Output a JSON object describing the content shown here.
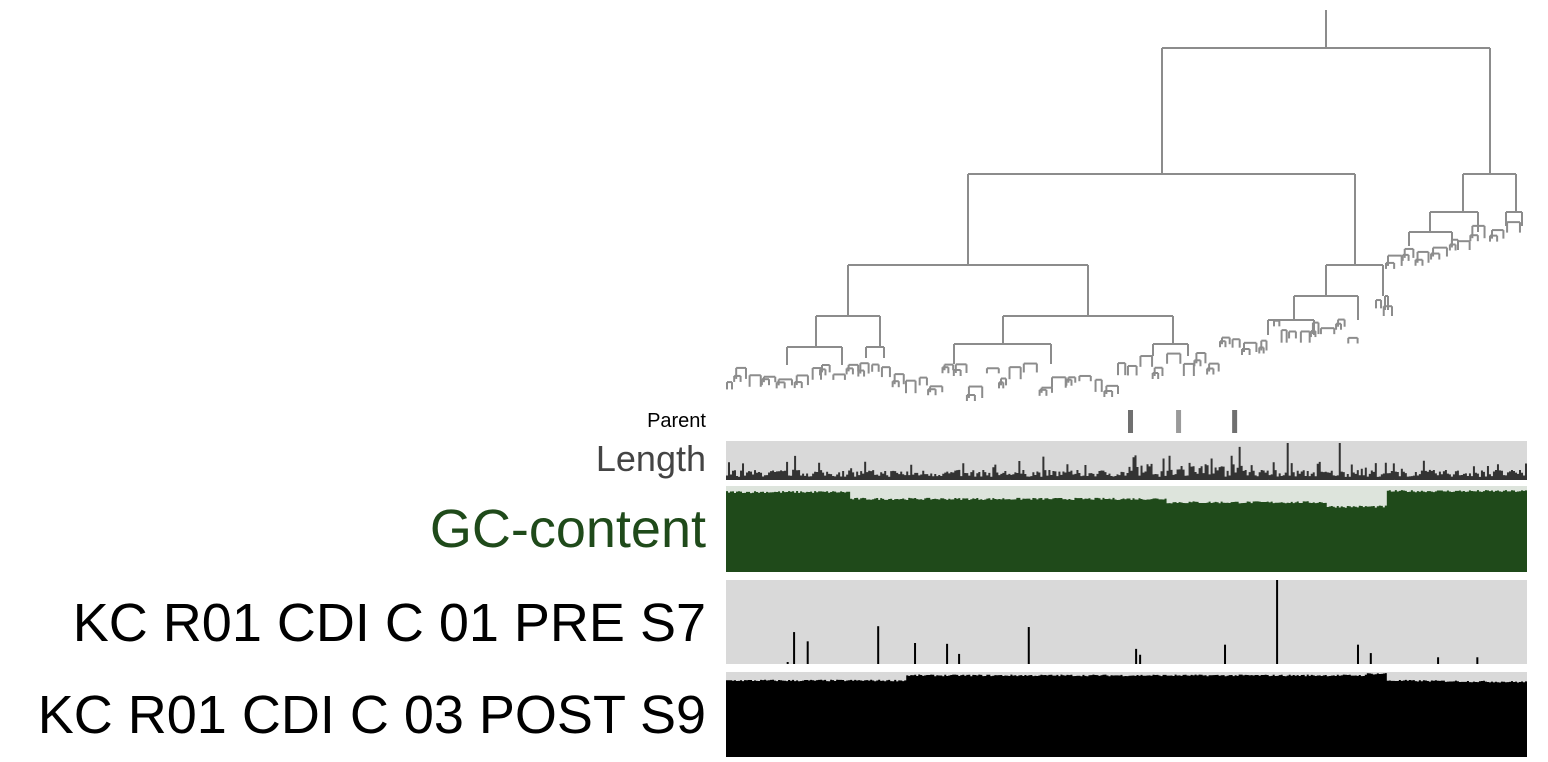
{
  "layers": {
    "parent": {
      "label": "Parent"
    },
    "length": {
      "label": "Length"
    },
    "gc": {
      "label": "GC-content"
    },
    "sample1": {
      "label": "KC R01 CDI C 01 PRE S7"
    },
    "sample2": {
      "label": "KC R01 CDI C 03 POST S9"
    }
  },
  "colors": {
    "tree": "#8c8c8c",
    "layer_background": "#d9d9d9",
    "parent_marker": "#707070",
    "length_bar": "#333333",
    "gc_fill": "#1f4a1a",
    "gc_background": "#dde4dc",
    "sample1_bar": "#000000",
    "sample2_fill": "#000000",
    "label_length": "#444444",
    "label_gc": "#1f4a1a"
  },
  "chart_data": {
    "type": "bar",
    "description_kind": "anvi'o-style contig dendrogram with per-item layers",
    "item_count": 400,
    "parent_markers": [
      0.505,
      0.565,
      0.635
    ],
    "length_peaks": [
      {
        "x": 0.7,
        "v": 0.95
      },
      {
        "x": 0.765,
        "v": 0.95
      },
      {
        "x": 0.64,
        "v": 0.85
      },
      {
        "x": 0.545,
        "v": 0.55
      },
      {
        "x": 0.085,
        "v": 0.62
      },
      {
        "x": 0.395,
        "v": 0.6
      },
      {
        "x": 0.605,
        "v": 0.55
      }
    ],
    "gc_segments": [
      {
        "from": 0.0,
        "to": 0.155,
        "v": 0.93
      },
      {
        "from": 0.155,
        "to": 0.55,
        "v": 0.85
      },
      {
        "from": 0.55,
        "to": 0.75,
        "v": 0.81
      },
      {
        "from": 0.75,
        "to": 0.825,
        "v": 0.76
      },
      {
        "from": 0.825,
        "to": 1.0,
        "v": 0.94
      }
    ],
    "sample1_spikes": [
      {
        "x": 0.077,
        "v": 0.02
      },
      {
        "x": 0.085,
        "v": 0.38
      },
      {
        "x": 0.102,
        "v": 0.27
      },
      {
        "x": 0.19,
        "v": 0.45
      },
      {
        "x": 0.236,
        "v": 0.25
      },
      {
        "x": 0.276,
        "v": 0.24
      },
      {
        "x": 0.291,
        "v": 0.12
      },
      {
        "x": 0.378,
        "v": 0.44
      },
      {
        "x": 0.512,
        "v": 0.18
      },
      {
        "x": 0.517,
        "v": 0.11
      },
      {
        "x": 0.623,
        "v": 0.23
      },
      {
        "x": 0.688,
        "v": 1.0
      },
      {
        "x": 0.789,
        "v": 0.23
      },
      {
        "x": 0.805,
        "v": 0.13
      },
      {
        "x": 0.889,
        "v": 0.08
      },
      {
        "x": 0.938,
        "v": 0.08
      }
    ],
    "sample2_segments": [
      {
        "from": 0.0,
        "to": 0.225,
        "v": 0.9
      },
      {
        "from": 0.225,
        "to": 0.825,
        "v": 0.96
      },
      {
        "from": 0.825,
        "to": 1.0,
        "v": 0.9
      }
    ]
  }
}
